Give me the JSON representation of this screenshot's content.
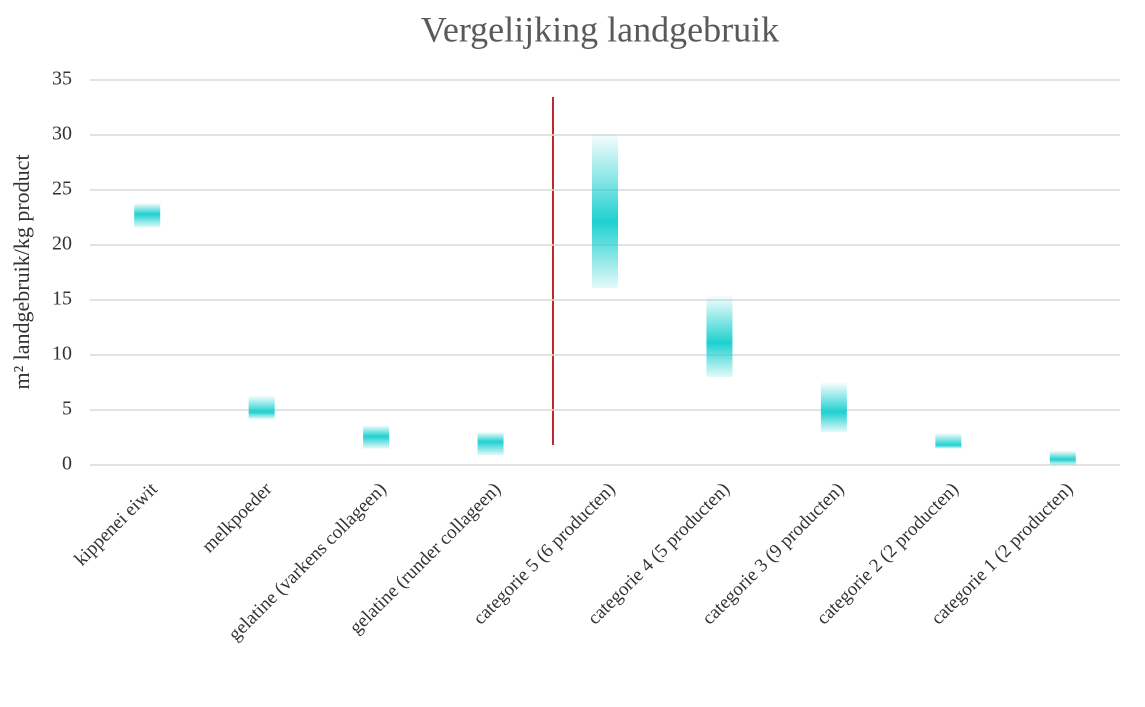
{
  "chart_data": {
    "type": "range",
    "title": "Vergelijking landgebruik",
    "y_label": "m² landgebruik/kg product",
    "categories": [
      "kippenei eiwit",
      "melkpoeder",
      "gelatine (varkens collageen)",
      "gelatine (runder collageen)",
      "categorie 5 (6 producten)",
      "categorie 4 (5 producten)",
      "categorie 3 (9 producten)",
      "categorie 2 (2 producten)",
      "categorie 1 (2 producten)"
    ],
    "low": [
      21.6,
      4.2,
      1.5,
      0.9,
      16.1,
      8.0,
      3.0,
      1.5,
      0
    ],
    "high": [
      23.8,
      6.3,
      3.6,
      3.0,
      30.2,
      15.4,
      7.5,
      2.9,
      1.3
    ],
    "mid": [
      22.8,
      4.8,
      2.6,
      2.1,
      22.1,
      11.1,
      4.8,
      1.8,
      0.5
    ],
    "color": "#1fd0d0",
    "ylim": [
      0,
      35
    ],
    "yticks": [
      0,
      5,
      10,
      15,
      20,
      25,
      30,
      35
    ],
    "grid": true
  }
}
